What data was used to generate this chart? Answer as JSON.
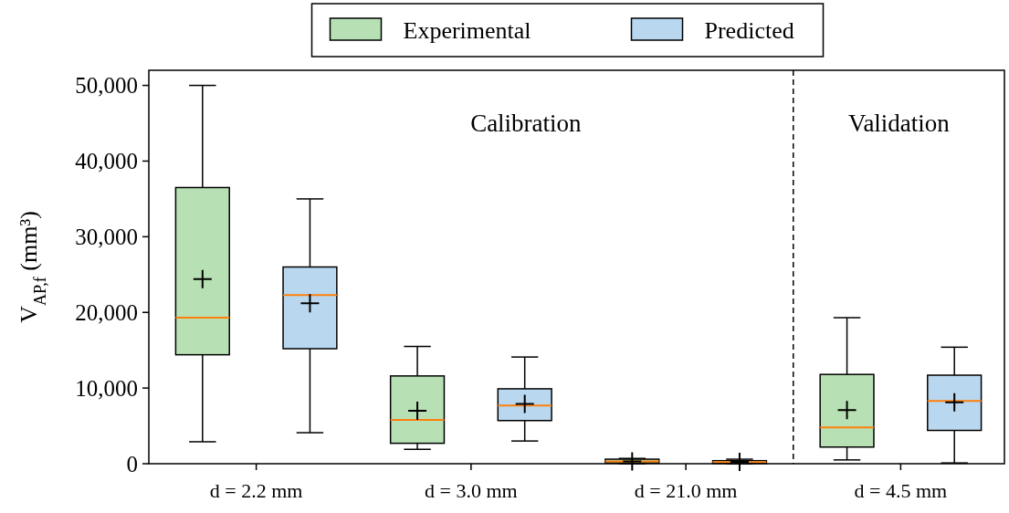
{
  "chart_data": {
    "type": "box",
    "ylabel": "V$_{AP,f}$ (mm³)",
    "categories": [
      "d = 2.2 mm",
      "d = 3.0 mm",
      "d = 21.0 mm",
      "d = 4.5 mm"
    ],
    "series": [
      {
        "name": "Experimental",
        "color": "#b7e1b4",
        "boxes": [
          {
            "low": 2900,
            "q1": 14400,
            "median": 19300,
            "q3": 36500,
            "high": 50000,
            "mean": 24400
          },
          {
            "low": 1900,
            "q1": 2700,
            "median": 5800,
            "q3": 11600,
            "high": 15500,
            "mean": 7000
          },
          {
            "low": 0,
            "q1": 100,
            "median": 300,
            "q3": 600,
            "high": 700,
            "mean": 300
          },
          {
            "low": 500,
            "q1": 2200,
            "median": 4800,
            "q3": 11800,
            "high": 19300,
            "mean": 7100
          }
        ]
      },
      {
        "name": "Predicted",
        "color": "#b9d8f0",
        "boxes": [
          {
            "low": 4100,
            "q1": 15200,
            "median": 22300,
            "q3": 26000,
            "high": 35000,
            "mean": 21200
          },
          {
            "low": 3000,
            "q1": 5700,
            "median": 7700,
            "q3": 9900,
            "high": 14100,
            "mean": 7900
          },
          {
            "low": 0,
            "q1": 50,
            "median": 200,
            "q3": 400,
            "high": 600,
            "mean": 250
          },
          {
            "low": 100,
            "q1": 4400,
            "median": 8300,
            "q3": 11700,
            "high": 15400,
            "mean": 8100
          }
        ]
      }
    ],
    "ylim": [
      0,
      52000
    ],
    "yticks": [
      0,
      {
        "value": 10000,
        "label": "10,000"
      },
      {
        "value": 20000,
        "label": "20,000"
      },
      {
        "value": 30000,
        "label": "30,000"
      },
      {
        "value": 40000,
        "label": "40,000"
      },
      {
        "value": 50000,
        "label": "50,000"
      }
    ],
    "annotations": [
      "Calibration",
      "Validation"
    ],
    "legend": "top",
    "marker": "cross",
    "grid": false
  }
}
